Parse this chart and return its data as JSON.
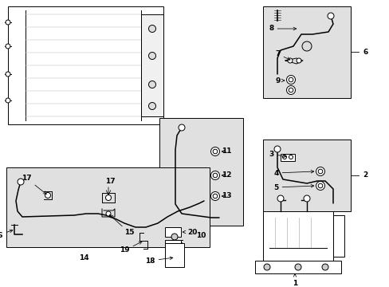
{
  "bg_color": "#ffffff",
  "line_color": "#000000",
  "box_fill": "#e0e0e0",
  "fig_width": 4.89,
  "fig_height": 3.6,
  "dpi": 100
}
